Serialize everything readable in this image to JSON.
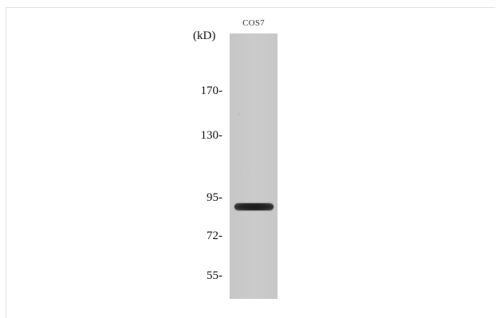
{
  "blot": {
    "lane_label": "COS7",
    "unit_label": "(kD)",
    "markers": [
      {
        "label": "170-",
        "kd": 170
      },
      {
        "label": "130-",
        "kd": 130
      },
      {
        "label": "95-",
        "kd": 95
      },
      {
        "label": "72-",
        "kd": 72
      },
      {
        "label": "55-",
        "kd": 55
      }
    ]
  }
}
